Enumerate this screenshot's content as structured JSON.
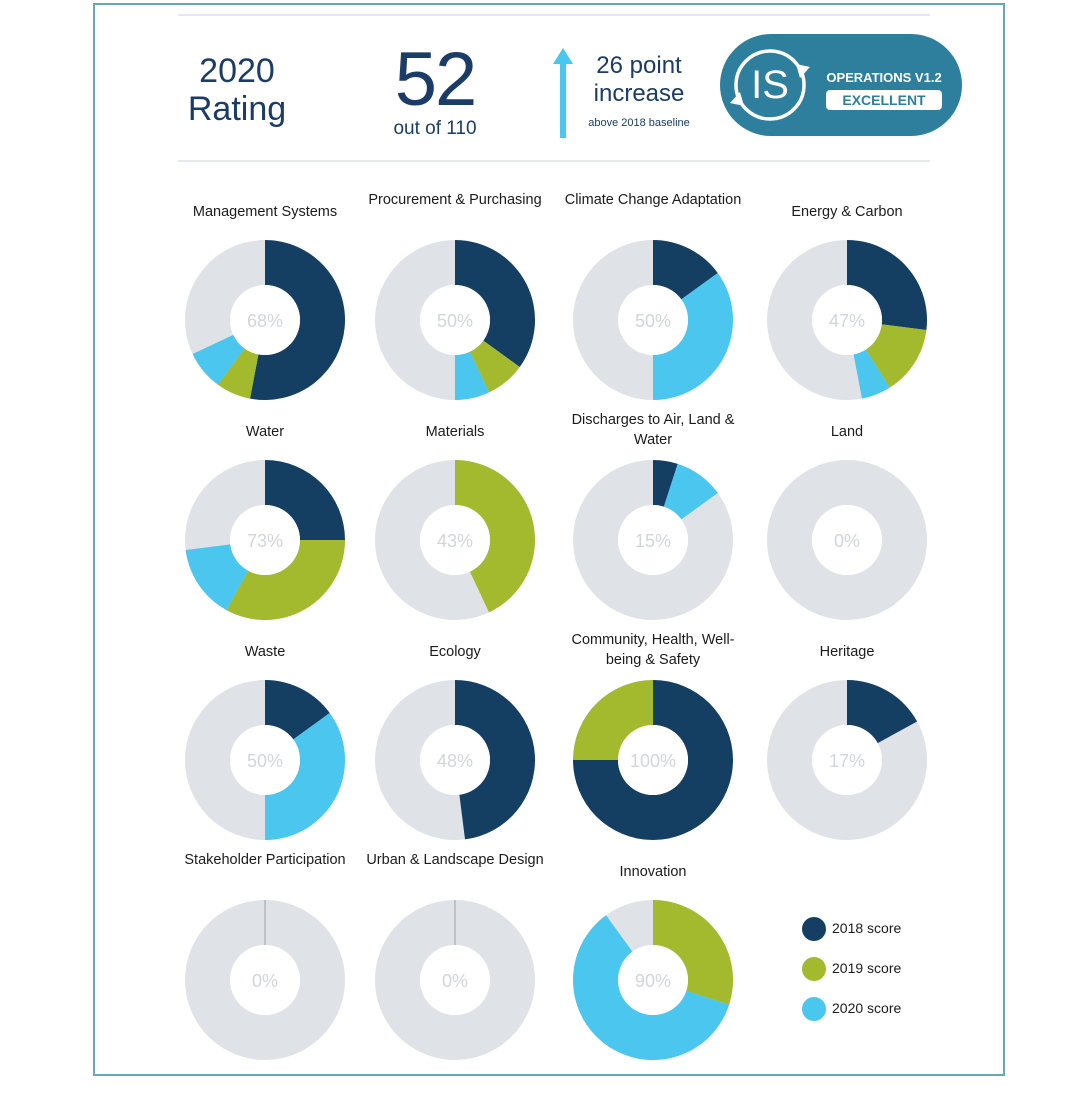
{
  "header": {
    "rating_line1": "2020",
    "rating_line2": "Rating",
    "score": "52",
    "score_sub": "out of 110",
    "increase_line1": "26 point",
    "increase_line2": "increase",
    "increase_line3": "above 2018 baseline",
    "badge_logo": "IS",
    "badge_line1": "OPERATIONS V1.2",
    "badge_line2": "EXCELLENT"
  },
  "colors": {
    "score_2018": "#143f63",
    "score_2019": "#a3b92e",
    "score_2020": "#4ac6ef",
    "remainder": "#dfe3e7",
    "badge": "#2e7f9d",
    "arrow": "#4ac6ef"
  },
  "legend": [
    {
      "label": "2018 score",
      "color": "#143f63"
    },
    {
      "label": "2019 score",
      "color": "#a3b92e"
    },
    {
      "label": "2020 score",
      "color": "#4ac6ef"
    }
  ],
  "chart_data": [
    {
      "type": "pie",
      "title": "Management Systems",
      "center_label": "68%",
      "total": 68,
      "segments": [
        {
          "series": "2018 score",
          "value": 53
        },
        {
          "series": "2019 score",
          "value": 7
        },
        {
          "series": "2020 score",
          "value": 8
        }
      ]
    },
    {
      "type": "pie",
      "title": "Procurement & Purchasing",
      "center_label": "50%",
      "total": 50,
      "segments": [
        {
          "series": "2018 score",
          "value": 35
        },
        {
          "series": "2019 score",
          "value": 8
        },
        {
          "series": "2020 score",
          "value": 7
        }
      ]
    },
    {
      "type": "pie",
      "title": "Climate Change Adaptation",
      "center_label": "50%",
      "total": 50,
      "segments": [
        {
          "series": "2018 score",
          "value": 15
        },
        {
          "series": "2020 score",
          "value": 35
        }
      ]
    },
    {
      "type": "pie",
      "title": "Energy & Carbon",
      "center_label": "47%",
      "total": 47,
      "segments": [
        {
          "series": "2018 score",
          "value": 27
        },
        {
          "series": "2019 score",
          "value": 14
        },
        {
          "series": "2020 score",
          "value": 6
        }
      ]
    },
    {
      "type": "pie",
      "title": "Water",
      "center_label": "73%",
      "total": 73,
      "segments": [
        {
          "series": "2018 score",
          "value": 25
        },
        {
          "series": "2019 score",
          "value": 33
        },
        {
          "series": "2020 score",
          "value": 15
        }
      ]
    },
    {
      "type": "pie",
      "title": "Materials",
      "center_label": "43%",
      "total": 43,
      "segments": [
        {
          "series": "2019 score",
          "value": 43
        }
      ]
    },
    {
      "type": "pie",
      "title": "Discharges to Air, Land & Water",
      "center_label": "15%",
      "total": 15,
      "segments": [
        {
          "series": "2018 score",
          "value": 5
        },
        {
          "series": "2020 score",
          "value": 10
        }
      ]
    },
    {
      "type": "pie",
      "title": "Land",
      "center_label": "0%",
      "total": 0,
      "segments": []
    },
    {
      "type": "pie",
      "title": "Waste",
      "center_label": "50%",
      "total": 50,
      "segments": [
        {
          "series": "2018 score",
          "value": 15
        },
        {
          "series": "2020 score",
          "value": 35
        }
      ]
    },
    {
      "type": "pie",
      "title": "Ecology",
      "center_label": "48%",
      "total": 48,
      "segments": [
        {
          "series": "2018 score",
          "value": 48
        }
      ]
    },
    {
      "type": "pie",
      "title": "Community, Health, Well-being & Safety",
      "center_label": "100%",
      "total": 100,
      "segments": [
        {
          "series": "2018 score",
          "value": 75
        },
        {
          "series": "2019 score",
          "value": 25
        }
      ]
    },
    {
      "type": "pie",
      "title": "Heritage",
      "center_label": "17%",
      "total": 17,
      "segments": [
        {
          "series": "2018 score",
          "value": 17
        }
      ]
    },
    {
      "type": "pie",
      "title": "Stakeholder Participation",
      "center_label": "0%",
      "total": 0,
      "segments": []
    },
    {
      "type": "pie",
      "title": "Urban & Landscape Design",
      "center_label": "0%",
      "total": 0,
      "segments": []
    },
    {
      "type": "pie",
      "title": "Innovation",
      "center_label": "90%",
      "total": 90,
      "segments": [
        {
          "series": "2019 score",
          "value": 30
        },
        {
          "series": "2020 score",
          "value": 60
        }
      ]
    }
  ]
}
